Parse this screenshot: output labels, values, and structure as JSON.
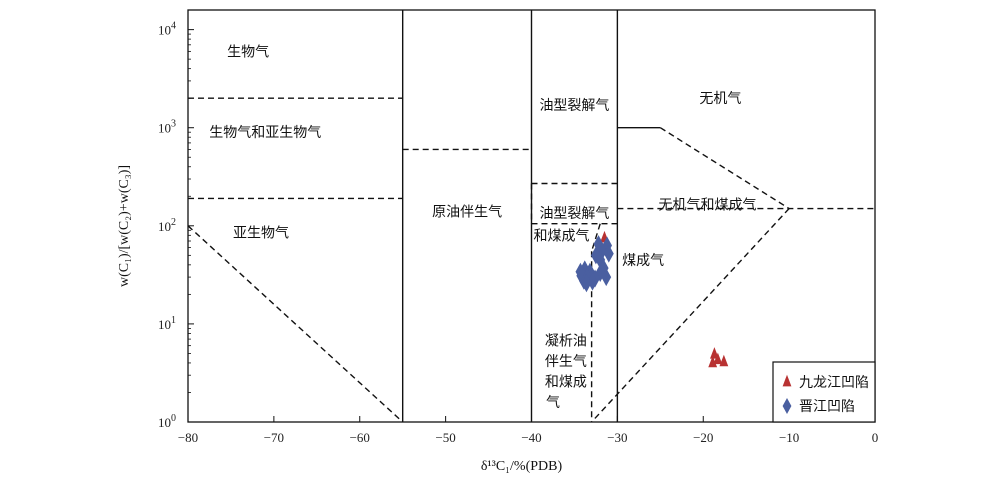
{
  "chart_data": {
    "type": "scatter",
    "xlabel": "δ¹³C₁/%(PDB)",
    "ylabel": "w(C₁)/[w(C₂)+w(C₃)]",
    "x_range": [
      -80,
      0
    ],
    "y_range_log10": [
      0,
      4.2
    ],
    "x_ticks": [
      -80,
      -70,
      -60,
      -50,
      -40,
      -30,
      -20,
      -10,
      0
    ],
    "x_tick_labels": [
      "−80",
      "−70",
      "−60",
      "−50",
      "−40",
      "−30",
      "−20",
      "−10",
      "0"
    ],
    "y_ticks": [
      {
        "base": "10",
        "exp": "0",
        "value": 1
      },
      {
        "base": "10",
        "exp": "1",
        "value": 10
      },
      {
        "base": "10",
        "exp": "2",
        "value": 100
      },
      {
        "base": "10",
        "exp": "3",
        "value": 1000
      },
      {
        "base": "10",
        "exp": "4",
        "value": 10000
      }
    ],
    "y_scale": "log",
    "zones": [
      {
        "label": "生物气",
        "x": -73,
        "y": 6000
      },
      {
        "label": "生物气和亚生物气",
        "x": -71,
        "y": 900
      },
      {
        "label": "亚生物气",
        "x": -71.5,
        "y": 85
      },
      {
        "label": "原油伴生气",
        "x": -47.5,
        "y": 140
      },
      {
        "label": "油型裂解气",
        "x": -35,
        "y": 1700
      },
      {
        "label": "油型裂解气",
        "x": -35,
        "y": 135
      },
      {
        "label": "和煤成气",
        "x": -36.5,
        "y": 80
      },
      {
        "label": "无机气",
        "x": -18,
        "y": 2000
      },
      {
        "label": "无机气和煤成气",
        "x": -19.5,
        "y": 165
      },
      {
        "label": "煤成气",
        "x": -27,
        "y": 45
      },
      {
        "label": "凝析油",
        "x": -36,
        "y": 6.8
      },
      {
        "label": "伴生气",
        "x": -36,
        "y": 4.2
      },
      {
        "label": "和煤成",
        "x": -36,
        "y": 2.6
      },
      {
        "label": "气",
        "x": -37.5,
        "y": 1.6
      }
    ],
    "boundaries_solid": [
      [
        [
          -55,
          1
        ],
        [
          -55,
          16000
        ]
      ],
      [
        [
          -40,
          1
        ],
        [
          -40,
          16000
        ]
      ],
      [
        [
          -30,
          1
        ],
        [
          -30,
          16000
        ]
      ],
      [
        [
          -30,
          1000
        ],
        [
          -25,
          1000
        ]
      ]
    ],
    "boundaries_dashed": [
      [
        [
          -80,
          2000
        ],
        [
          -55,
          2000
        ]
      ],
      [
        [
          -80,
          190
        ],
        [
          -55,
          190
        ]
      ],
      [
        [
          -80,
          100
        ],
        [
          -55,
          1
        ]
      ],
      [
        [
          -55,
          600
        ],
        [
          -40,
          600
        ]
      ],
      [
        [
          -40,
          270
        ],
        [
          -30,
          270
        ]
      ],
      [
        [
          -40,
          270
        ],
        [
          -40,
          105
        ]
      ],
      [
        [
          -40,
          105
        ],
        [
          -30,
          105
        ]
      ],
      [
        [
          -32,
          105
        ],
        [
          -33,
          55
        ]
      ],
      [
        [
          -33,
          55
        ],
        [
          -33,
          1
        ]
      ],
      [
        [
          -25,
          1000
        ],
        [
          -10,
          150
        ]
      ],
      [
        [
          -30,
          150
        ],
        [
          0,
          150
        ]
      ],
      [
        [
          -10,
          150
        ],
        [
          -33,
          1
        ]
      ]
    ],
    "series": [
      {
        "name": "九龙江凹陷",
        "marker": "triangle",
        "color": "#b83232",
        "points": [
          {
            "x": -31.5,
            "y": 75
          },
          {
            "x": -18.7,
            "y": 4.9
          },
          {
            "x": -17.6,
            "y": 4.1
          },
          {
            "x": -18.9,
            "y": 4.0
          },
          {
            "x": -18.3,
            "y": 4.3
          }
        ]
      },
      {
        "name": "晋江凹陷",
        "marker": "diamond",
        "color": "#4a5fa0",
        "points": [
          {
            "x": -32.2,
            "y": 65
          },
          {
            "x": -31.2,
            "y": 63
          },
          {
            "x": -31.8,
            "y": 55
          },
          {
            "x": -32.5,
            "y": 50
          },
          {
            "x": -31.0,
            "y": 52
          },
          {
            "x": -32.0,
            "y": 45
          },
          {
            "x": -33.8,
            "y": 36
          },
          {
            "x": -33.2,
            "y": 34
          },
          {
            "x": -32.0,
            "y": 33
          },
          {
            "x": -34.2,
            "y": 31
          },
          {
            "x": -33.5,
            "y": 30
          },
          {
            "x": -32.6,
            "y": 29
          },
          {
            "x": -33.9,
            "y": 27.5
          },
          {
            "x": -32.9,
            "y": 27
          },
          {
            "x": -31.6,
            "y": 37
          },
          {
            "x": -31.3,
            "y": 30
          },
          {
            "x": -33.6,
            "y": 26
          },
          {
            "x": -34.3,
            "y": 34
          }
        ]
      }
    ],
    "legend": {
      "placement": "bottom-right",
      "entries": [
        {
          "label": "九龙江凹陷",
          "marker": "triangle",
          "color": "#b83232"
        },
        {
          "label": "晋江凹陷",
          "marker": "diamond",
          "color": "#4a5fa0"
        }
      ]
    }
  }
}
